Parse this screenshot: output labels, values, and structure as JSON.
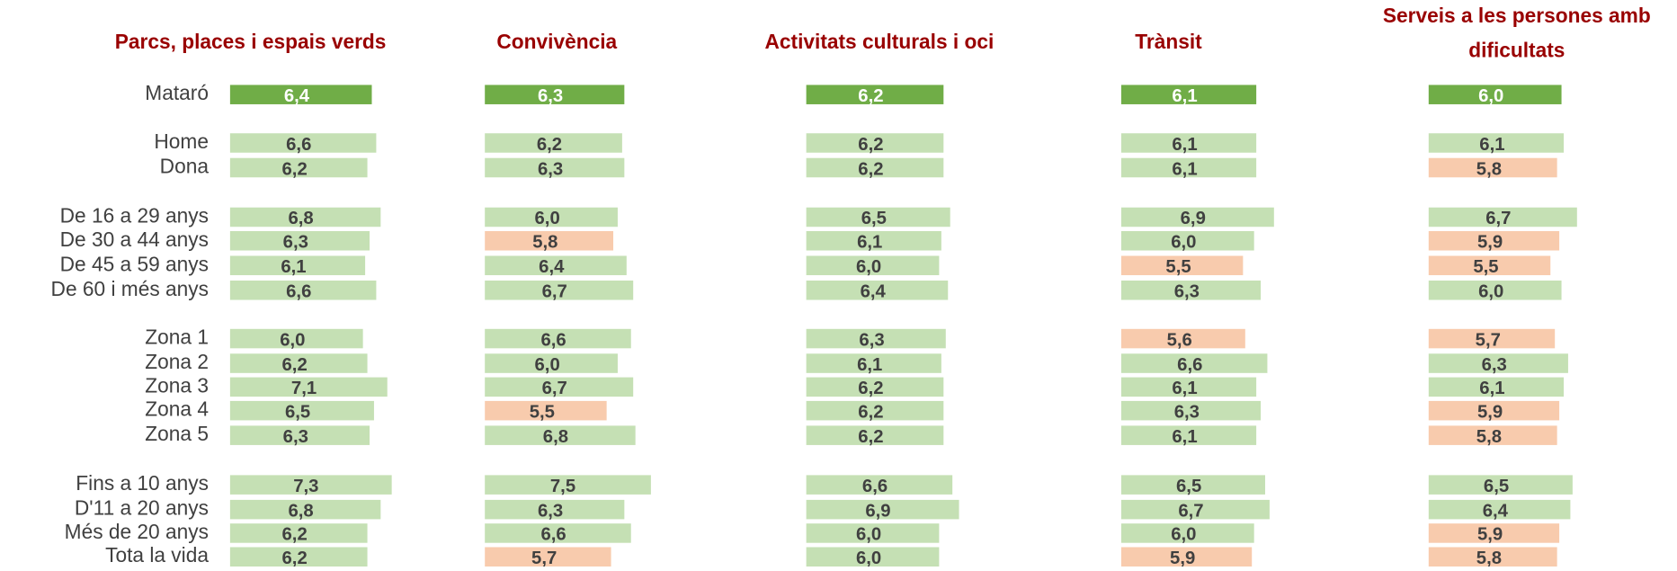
{
  "chart_data": {
    "type": "bar",
    "categories": [
      "Mataró",
      "Home",
      "Dona",
      "De 16 a 29 anys",
      "De 30 a 44 anys",
      "De 45 a 59 anys",
      "De 60 i més anys",
      "Zona 1",
      "Zona 2",
      "Zona 3",
      "Zona 4",
      "Zona  5",
      "Fins a 10 anys",
      "D'11 a 20 anys",
      "Més de 20 anys",
      "Tota la vida"
    ],
    "series": [
      {
        "name": [
          "Parcs, places i espais verds"
        ],
        "values": [
          6.4,
          6.6,
          6.2,
          6.8,
          6.3,
          6.1,
          6.6,
          6.0,
          6.2,
          7.1,
          6.5,
          6.3,
          7.3,
          6.8,
          6.2,
          6.2
        ],
        "value_labels": [
          "6,4",
          "6,6",
          "6,2",
          "6,8",
          "6,3",
          "6,1",
          "6,6",
          "6,0",
          "6,2",
          "7,1",
          "6,5",
          "6,3",
          "7,3",
          "6,8",
          "6,2",
          "6,2"
        ],
        "colors": [
          "#70ad47",
          "#c5e0b4",
          "#c5e0b4",
          "#c5e0b4",
          "#c5e0b4",
          "#c5e0b4",
          "#c5e0b4",
          "#c5e0b4",
          "#c5e0b4",
          "#c5e0b4",
          "#c5e0b4",
          "#c5e0b4",
          "#c5e0b4",
          "#c5e0b4",
          "#c5e0b4",
          "#c5e0b4"
        ]
      },
      {
        "name": [
          "Convivència"
        ],
        "values": [
          6.3,
          6.2,
          6.3,
          6.0,
          5.8,
          6.4,
          6.7,
          6.6,
          6.0,
          6.7,
          5.5,
          6.8,
          7.5,
          6.3,
          6.6,
          5.7
        ],
        "value_labels": [
          "6,3",
          "6,2",
          "6,3",
          "6,0",
          "5,8",
          "6,4",
          "6,7",
          "6,6",
          "6,0",
          "6,7",
          "5,5",
          "6,8",
          "7,5",
          "6,3",
          "6,6",
          "5,7"
        ],
        "colors": [
          "#70ad47",
          "#c5e0b4",
          "#c5e0b4",
          "#c5e0b4",
          "#f8cbad",
          "#c5e0b4",
          "#c5e0b4",
          "#c5e0b4",
          "#c5e0b4",
          "#c5e0b4",
          "#f8cbad",
          "#c5e0b4",
          "#c5e0b4",
          "#c5e0b4",
          "#c5e0b4",
          "#f8cbad"
        ]
      },
      {
        "name": [
          "Activitats culturals i oci"
        ],
        "values": [
          6.2,
          6.2,
          6.2,
          6.5,
          6.1,
          6.0,
          6.4,
          6.3,
          6.1,
          6.2,
          6.2,
          6.2,
          6.6,
          6.9,
          6.0,
          6.0
        ],
        "value_labels": [
          "6,2",
          "6,2",
          "6,2",
          "6,5",
          "6,1",
          "6,0",
          "6,4",
          "6,3",
          "6,1",
          "6,2",
          "6,2",
          "6,2",
          "6,6",
          "6,9",
          "6,0",
          "6,0"
        ],
        "colors": [
          "#70ad47",
          "#c5e0b4",
          "#c5e0b4",
          "#c5e0b4",
          "#c5e0b4",
          "#c5e0b4",
          "#c5e0b4",
          "#c5e0b4",
          "#c5e0b4",
          "#c5e0b4",
          "#c5e0b4",
          "#c5e0b4",
          "#c5e0b4",
          "#c5e0b4",
          "#c5e0b4",
          "#c5e0b4"
        ]
      },
      {
        "name": [
          "Trànsit"
        ],
        "values": [
          6.1,
          6.1,
          6.1,
          6.9,
          6.0,
          5.5,
          6.3,
          5.6,
          6.6,
          6.1,
          6.3,
          6.1,
          6.5,
          6.7,
          6.0,
          5.9
        ],
        "value_labels": [
          "6,1",
          "6,1",
          "6,1",
          "6,9",
          "6,0",
          "5,5",
          "6,3",
          "5,6",
          "6,6",
          "6,1",
          "6,3",
          "6,1",
          "6,5",
          "6,7",
          "6,0",
          "5,9"
        ],
        "colors": [
          "#70ad47",
          "#c5e0b4",
          "#c5e0b4",
          "#c5e0b4",
          "#c5e0b4",
          "#f8cbad",
          "#c5e0b4",
          "#f8cbad",
          "#c5e0b4",
          "#c5e0b4",
          "#c5e0b4",
          "#c5e0b4",
          "#c5e0b4",
          "#c5e0b4",
          "#c5e0b4",
          "#f8cbad"
        ]
      },
      {
        "name": [
          "Serveis a les persones amb",
          "dificultats"
        ],
        "values": [
          6.0,
          6.1,
          5.8,
          6.7,
          5.9,
          5.5,
          6.0,
          5.7,
          6.3,
          6.1,
          5.9,
          5.8,
          6.5,
          6.4,
          5.9,
          5.8
        ],
        "value_labels": [
          "6,0",
          "6,1",
          "5,8",
          "6,7",
          "5,9",
          "5,5",
          "6,0",
          "5,7",
          "6,3",
          "6,1",
          "5,9",
          "5,8",
          "6,5",
          "6,4",
          "5,9",
          "5,8"
        ],
        "colors": [
          "#70ad47",
          "#c5e0b4",
          "#f8cbad",
          "#c5e0b4",
          "#f8cbad",
          "#f8cbad",
          "#c5e0b4",
          "#f8cbad",
          "#c5e0b4",
          "#c5e0b4",
          "#f8cbad",
          "#f8cbad",
          "#c5e0b4",
          "#c5e0b4",
          "#f8cbad",
          "#f8cbad"
        ]
      }
    ]
  }
}
